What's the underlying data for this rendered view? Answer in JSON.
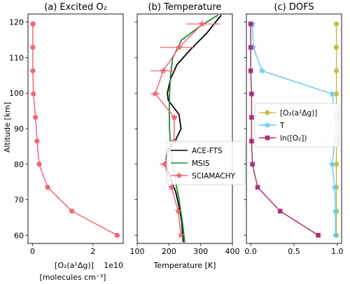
{
  "figure": {
    "ylabel": "Altitude [km]"
  },
  "chart_data": [
    {
      "type": "line",
      "title": "(a) Excited O₂",
      "xlabel_line1": "[O₂(a¹Δg)]",
      "xlabel_line2": "[molecules cm⁻³]",
      "offset_text": "1e10",
      "xlim": [
        -0.15,
        3.0
      ],
      "ylim": [
        57.7,
        122.3
      ],
      "xticks": [
        0,
        2
      ],
      "xticklabels": [
        "0",
        "2"
      ],
      "yticks": [
        60,
        70,
        80,
        90,
        100,
        110,
        120
      ],
      "yticklabels": [
        "60",
        "70",
        "80",
        "90",
        "100",
        "110",
        "120"
      ],
      "series": [
        {
          "color": "#EE6677",
          "marker": "circle",
          "x": [
            2.8,
            1.3,
            0.5,
            0.22,
            0.15,
            0.1,
            0.03,
            0.01,
            0.01,
            0.01,
            0.02
          ],
          "y": [
            60.0,
            66.8,
            73.5,
            80.0,
            86.5,
            93.2,
            99.8,
            106.3,
            112.9,
            119.5,
            119.5
          ]
        }
      ]
    },
    {
      "type": "line",
      "title": "(b) Temperature",
      "xlabel": "Temperature [K]",
      "xlim": [
        100,
        400
      ],
      "ylim": [
        57.7,
        122.3
      ],
      "xticks": [
        100,
        200,
        300,
        400
      ],
      "xticklabels": [
        "100",
        "200",
        "300",
        "400"
      ],
      "legend_placement": "center-right",
      "series": [
        {
          "name": "ACE-FTS",
          "color": "#000000",
          "x": [
            245,
            240,
            232,
            222,
            210,
            198,
            190,
            193,
            205,
            222,
            238,
            232,
            215,
            198,
            195,
            205,
            225,
            265,
            320,
            365
          ],
          "y": [
            58,
            64,
            68,
            72,
            75,
            78,
            80,
            83,
            85,
            87,
            90,
            94,
            96,
            98,
            100,
            104,
            108,
            112,
            117,
            122
          ]
        },
        {
          "name": "MSIS",
          "color": "#228833",
          "x": [
            250,
            242,
            232,
            221,
            212,
            205,
            202,
            201,
            202,
            205,
            212,
            240,
            300,
            355
          ],
          "y": [
            58,
            64,
            70,
            75,
            80,
            85,
            90,
            95,
            100,
            105,
            110,
            115,
            119,
            122
          ]
        },
        {
          "name": "SCIAMACHY",
          "color": "#EE6677",
          "marker": "star",
          "x": [
            238,
            229,
            208,
            186,
            216,
            217,
            157,
            182,
            232,
            305
          ],
          "y": [
            60.0,
            66.8,
            73.5,
            80.0,
            86.5,
            93.2,
            99.8,
            106.3,
            112.9,
            119.5
          ],
          "xerr_low": [
            0,
            0,
            8,
            15,
            10,
            10,
            15,
            40,
            60,
            50
          ],
          "xerr_high": [
            0,
            0,
            8,
            15,
            10,
            10,
            15,
            40,
            50,
            55
          ]
        }
      ]
    },
    {
      "type": "line",
      "title": "(c) DOFS",
      "xlim": [
        -0.05,
        1.05
      ],
      "ylim": [
        57.7,
        122.3
      ],
      "xticks": [
        0.0,
        0.5,
        1.0
      ],
      "xticklabels": [
        "0.0",
        "0.5",
        "1.0"
      ],
      "legend_placement": "center-right",
      "series": [
        {
          "name": "[O₂(a¹Δg)]",
          "color": "#CCBB44",
          "marker": "circle",
          "x": [
            0.99,
            0.99,
            0.99,
            0.99,
            0.99,
            0.99,
            0.99,
            0.99,
            0.99,
            0.99
          ],
          "y": [
            60.0,
            66.8,
            73.5,
            80.0,
            86.5,
            93.2,
            99.8,
            106.3,
            112.9,
            119.5
          ]
        },
        {
          "name": "T",
          "color": "#66CCEE",
          "marker": "star",
          "x": [
            0.98,
            0.98,
            0.97,
            0.94,
            0.97,
            0.98,
            0.94,
            0.13,
            0.03,
            0.02
          ],
          "y": [
            60.0,
            66.8,
            73.5,
            80.0,
            86.5,
            93.2,
            99.8,
            106.3,
            112.9,
            119.5
          ]
        },
        {
          "name": "ln([O₂])",
          "color": "#AA3377",
          "marker": "square",
          "x": [
            0.78,
            0.34,
            0.08,
            0.02,
            0.01,
            0.01,
            0.01,
            0.0,
            0.0,
            0.0
          ],
          "y": [
            60.0,
            66.8,
            73.5,
            80.0,
            86.5,
            93.2,
            99.8,
            106.3,
            112.9,
            119.5
          ]
        }
      ]
    }
  ]
}
